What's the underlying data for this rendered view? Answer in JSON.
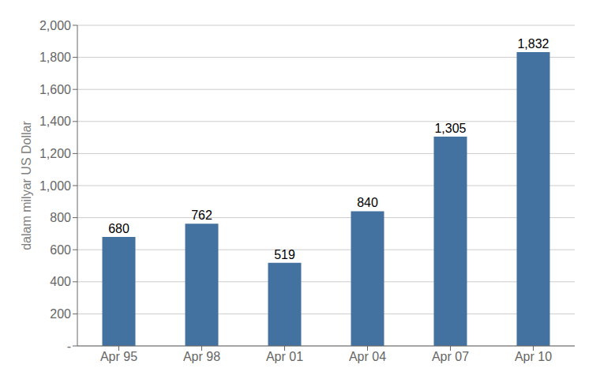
{
  "chart_data": {
    "type": "bar",
    "ylabel": "dalam milyar US Dollar",
    "categories": [
      "Apr 95",
      "Apr 98",
      "Apr 01",
      "Apr 04",
      "Apr 07",
      "Apr 10"
    ],
    "values": [
      680,
      762,
      519,
      840,
      1305,
      1832
    ],
    "value_labels": [
      "680",
      "762",
      "519",
      "840",
      "1,305",
      "1,832"
    ],
    "data_labels": true,
    "color": "#4472a0",
    "ylim": [
      0,
      2000
    ],
    "yticks": [
      {
        "value": 0,
        "label": "-"
      },
      200,
      400,
      600,
      800,
      {
        "value": 1000,
        "label": "1,000"
      },
      {
        "value": 1200,
        "label": "1,200"
      },
      {
        "value": 1400,
        "label": "1,400"
      },
      {
        "value": 1600,
        "label": "1,600"
      },
      {
        "value": 1800,
        "label": "1,800"
      },
      {
        "value": 2000,
        "label": "2,000"
      }
    ],
    "grid": true
  }
}
